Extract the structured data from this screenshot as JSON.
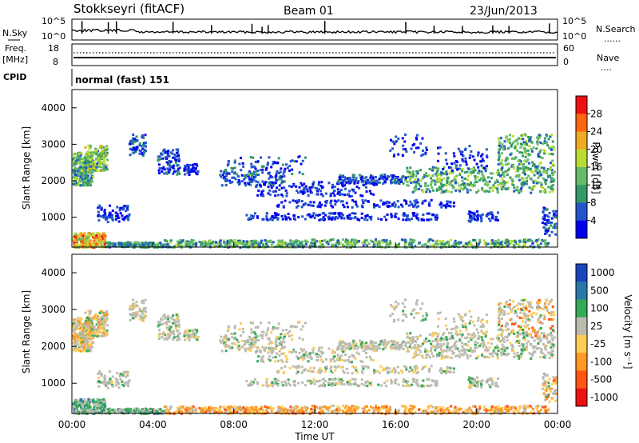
{
  "header": {
    "station": "Stokkseyri (fitACF)",
    "beam": "Beam 01",
    "date": "23/Jun/2013"
  },
  "left_labels": {
    "nsky": "N.Sky",
    "freq": "Freq.",
    "mhz": "[MHz]",
    "cpid": "CPID"
  },
  "right_labels": {
    "nsearch": "N.Search",
    "nave": "Nave",
    "dots": "......",
    "dots_short": "...."
  },
  "cpid_text": "normal (fast) 151",
  "chart_data": [
    {
      "type": "line",
      "panel": "noise",
      "left_ticks": [
        "10^5",
        "10^0"
      ],
      "right_ticks": [
        "10^5",
        "10^0"
      ]
    },
    {
      "type": "line",
      "panel": "frequency",
      "left_ticks": [
        "18",
        "8"
      ],
      "right_ticks": [
        "60",
        "0"
      ]
    },
    {
      "type": "heatmap",
      "panel": "power",
      "ylabel": "Slant Range [km]",
      "yticks": [
        "1000",
        "2000",
        "3000",
        "4000"
      ],
      "ylim": [
        180,
        4500
      ],
      "xlim": [
        0,
        24
      ],
      "colorbar_label": "Power [dB]",
      "colorbar_ticks": [
        "28",
        "24",
        "20",
        "16",
        "12",
        "8",
        "4"
      ],
      "colors": [
        "#0000ee",
        "#2255cc",
        "#339966",
        "#66bb66",
        "#bbdd33",
        "#eeaa22",
        "#ff6611",
        "#ee1111"
      ]
    },
    {
      "type": "heatmap",
      "panel": "velocity",
      "ylabel": "Slant Range [km]",
      "yticks": [
        "1000",
        "2000",
        "3000",
        "4000"
      ],
      "ylim": [
        180,
        4500
      ],
      "xlim": [
        0,
        24
      ],
      "colorbar_label": "Velocity [m s⁻¹]",
      "colorbar_ticks": [
        "1000",
        "500",
        "100",
        "25",
        "-25",
        "-100",
        "-500",
        "-1000"
      ],
      "colors": [
        "#1a44bb",
        "#2a77aa",
        "#33aa55",
        "#bbbbb0",
        "#ffcc55",
        "#ff9922",
        "#ff5511",
        "#ee1111"
      ]
    }
  ],
  "xaxis": {
    "ticks": [
      "00:00",
      "04:00",
      "08:00",
      "12:00",
      "16:00",
      "20:00",
      "00:00"
    ],
    "label": "Time UT"
  }
}
